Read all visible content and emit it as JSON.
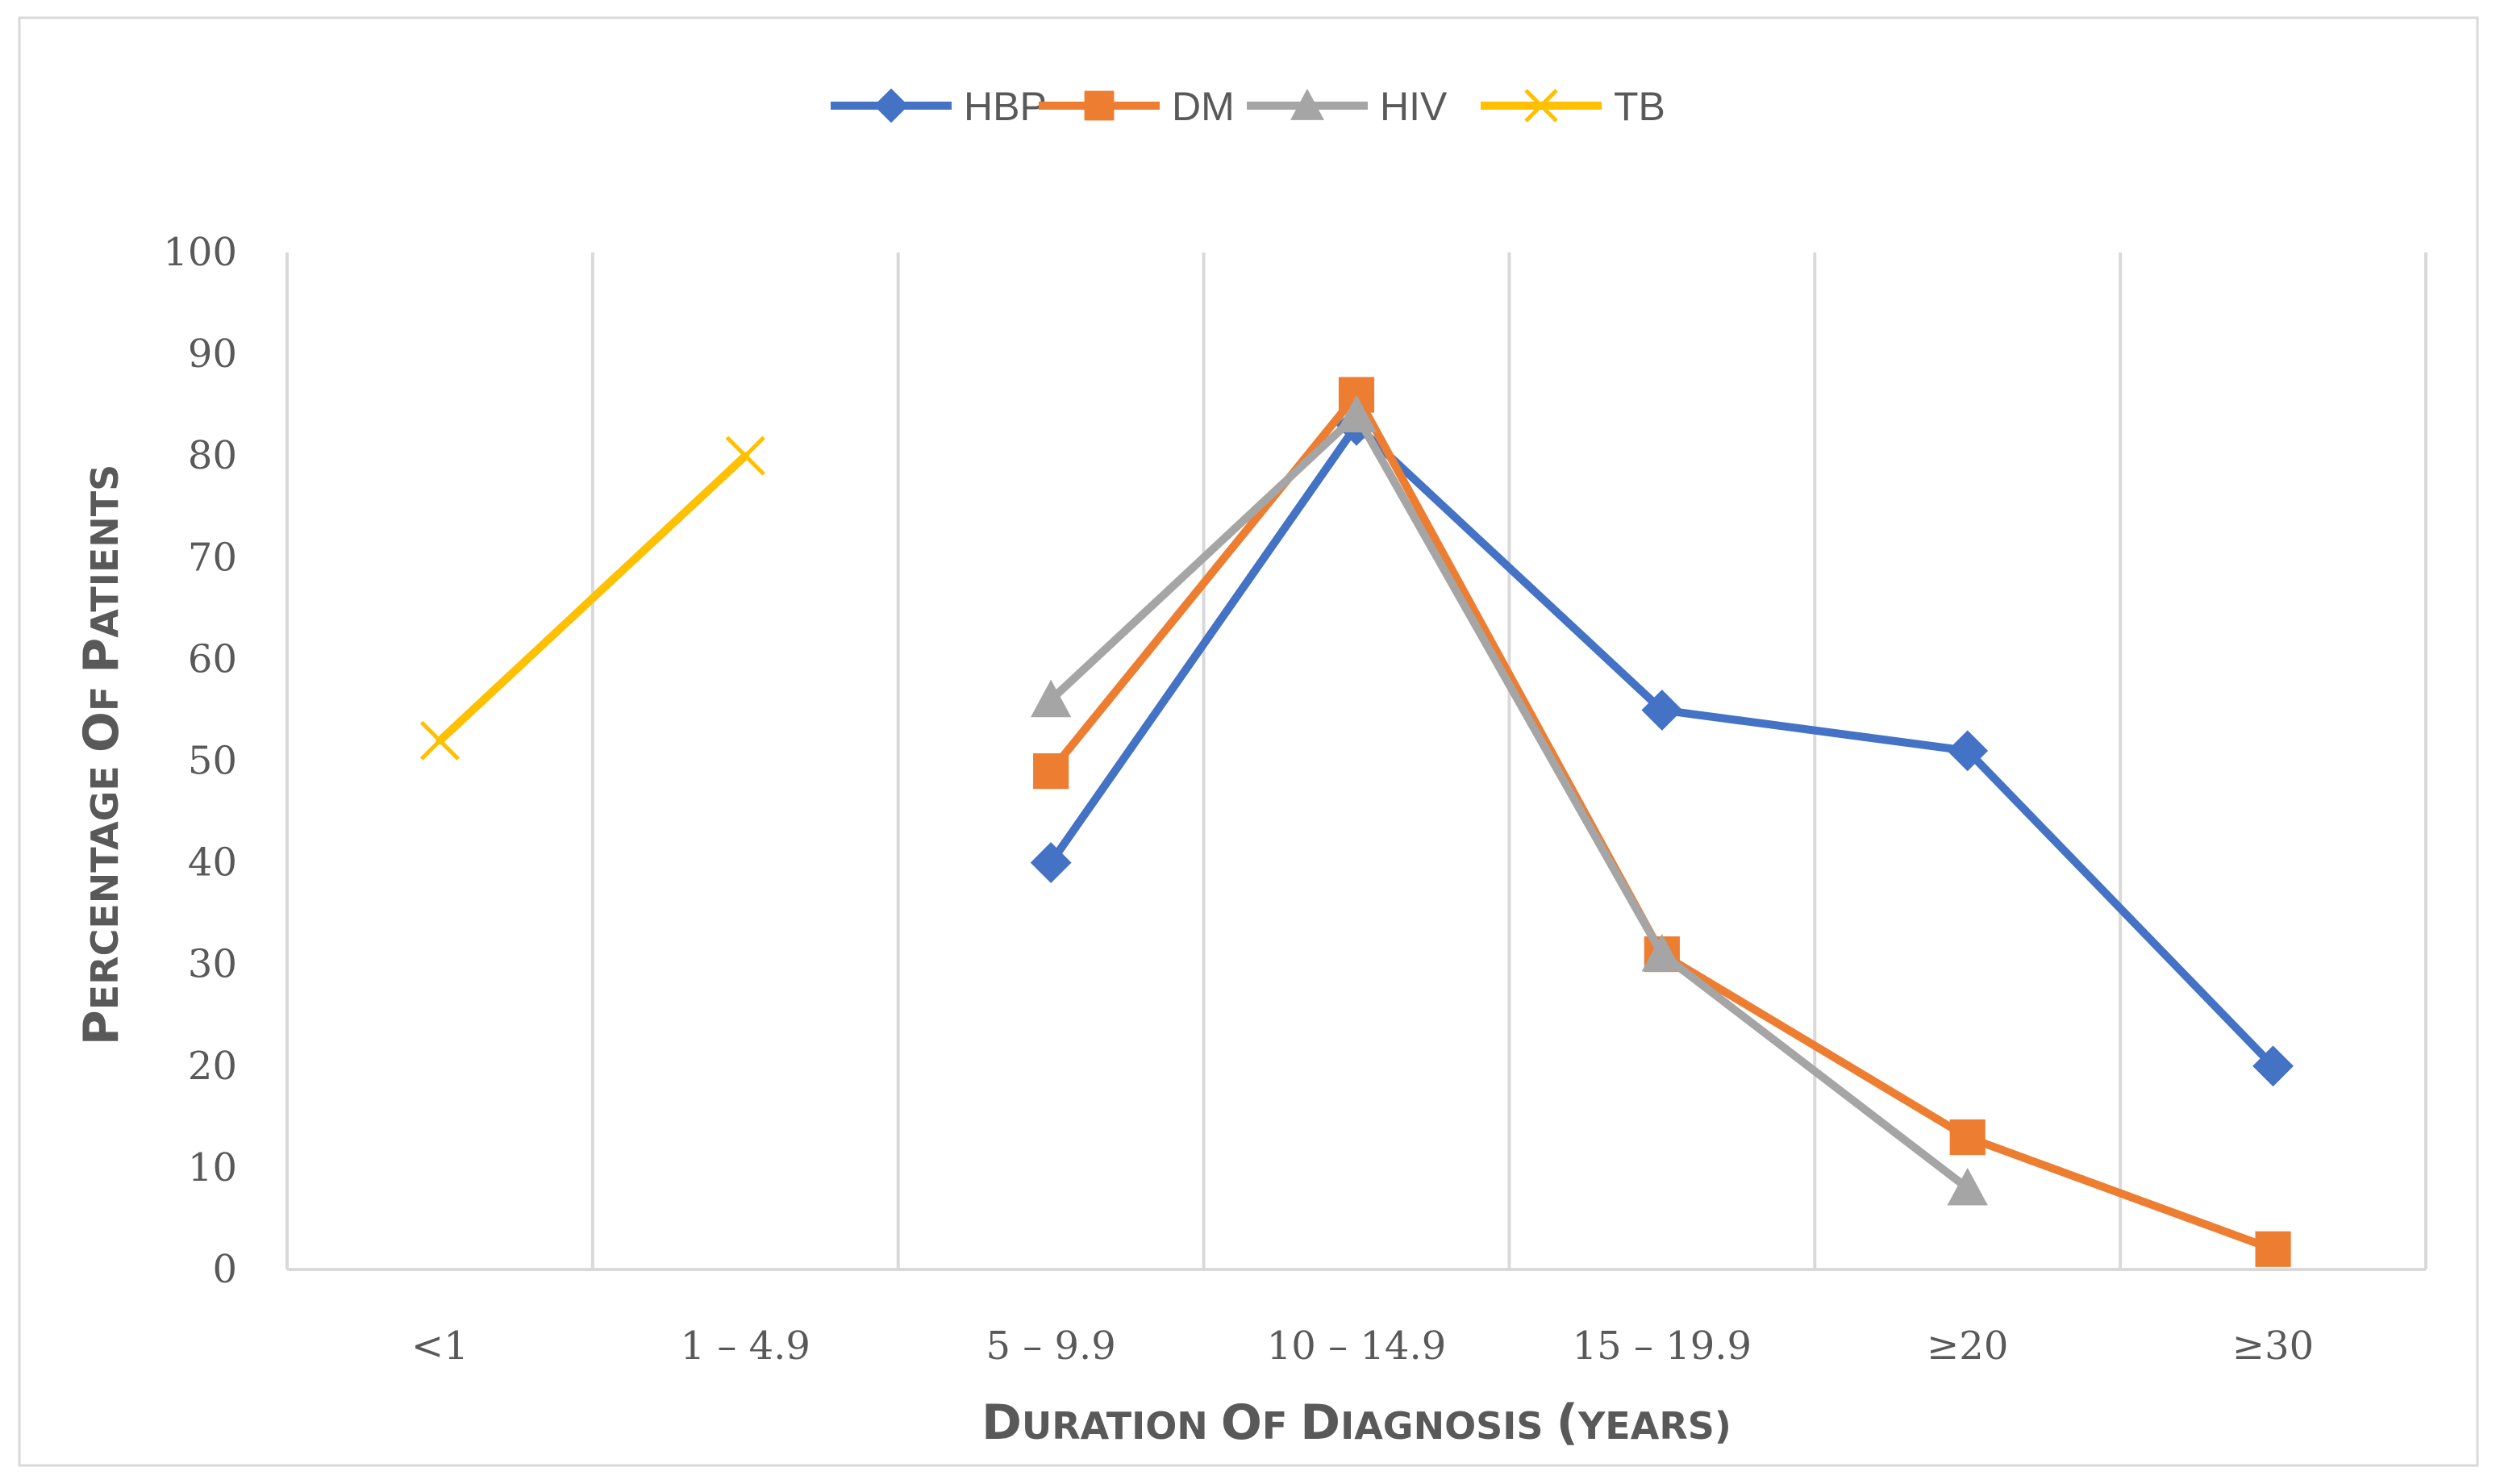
{
  "chart_data": {
    "type": "line",
    "title": "",
    "xlabel": "Duration of Diagnosis (years)",
    "ylabel": "Percentage of patients",
    "ylim": [
      0,
      100
    ],
    "ytick_step": 10,
    "grid": "vertical",
    "legend": "top-center",
    "categories": [
      "<1",
      "1 – 4.9",
      "5 – 9.9",
      "10 – 14.9",
      "15 – 19.9",
      "≥20",
      "≥30"
    ],
    "series": [
      {
        "name": "HBP",
        "color": "#4472C4",
        "marker": "diamond",
        "values": [
          null,
          null,
          40,
          83,
          55,
          51,
          20
        ]
      },
      {
        "name": "DM",
        "color": "#ED7D31",
        "marker": "square",
        "values": [
          null,
          null,
          49,
          86,
          31,
          13,
          2
        ]
      },
      {
        "name": "HIV",
        "color": "#A5A5A5",
        "marker": "triangle",
        "values": [
          null,
          null,
          56,
          84,
          31,
          8,
          null
        ]
      },
      {
        "name": "TB",
        "color": "#FFC000",
        "marker": "x",
        "values": [
          52,
          80,
          null,
          null,
          null,
          null,
          null
        ]
      }
    ]
  }
}
